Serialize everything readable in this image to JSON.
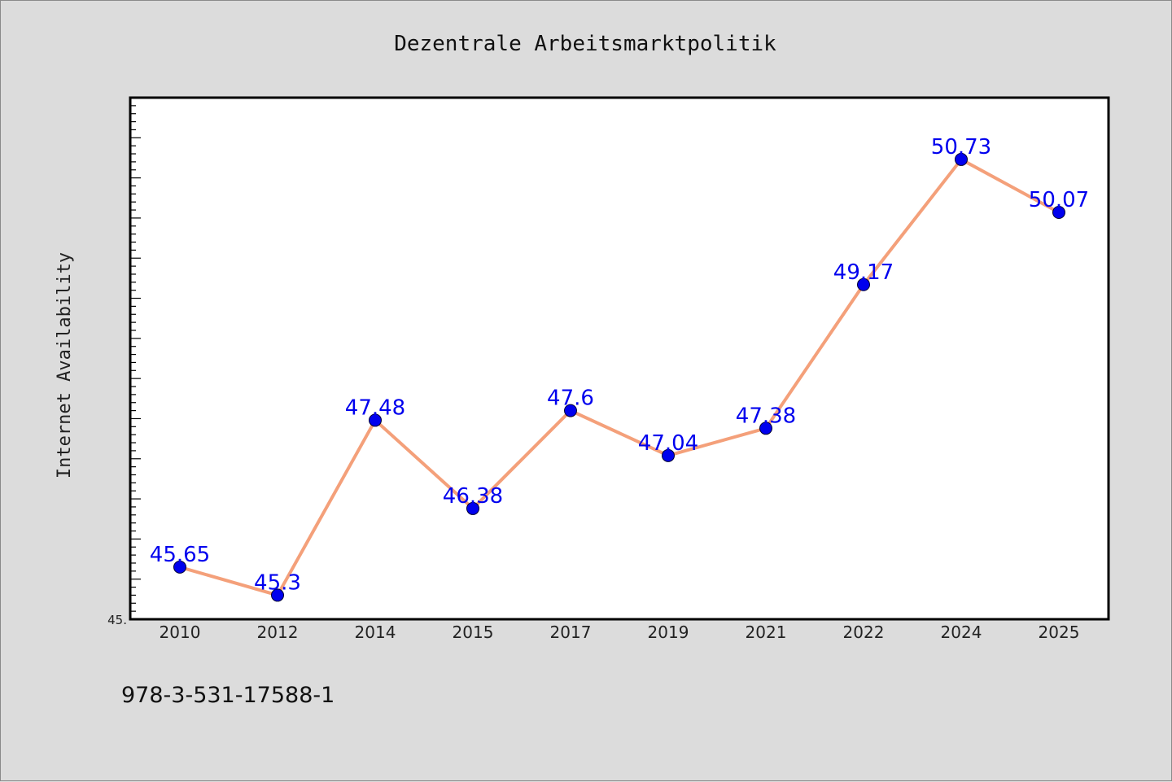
{
  "chart_data": {
    "type": "line",
    "title": "Dezentrale Arbeitsmarktpolitik",
    "xlabel": "",
    "ylabel": "Internet Availability",
    "categories": [
      "2010",
      "2012",
      "2014",
      "2015",
      "2017",
      "2019",
      "2021",
      "2022",
      "2024",
      "2025"
    ],
    "series": [
      {
        "values": [
          45.65,
          45.3,
          47.48,
          46.38,
          47.6,
          47.04,
          47.38,
          49.17,
          50.73,
          50.07
        ]
      }
    ],
    "data_labels": [
      "45.65",
      "45.3",
      "47.48",
      "46.38",
      "47.6",
      "47.04",
      "47.38",
      "49.17",
      "50.73",
      "50.07"
    ],
    "ylim": [
      45.0,
      51.5
    ],
    "y_tick_label_min": "45.",
    "grid": false,
    "legend": "none",
    "colors": {
      "line": "#f4a07a",
      "marker": "#0000ee",
      "label": "#0000ee"
    }
  },
  "footer_text": "978-3-531-17588-1"
}
